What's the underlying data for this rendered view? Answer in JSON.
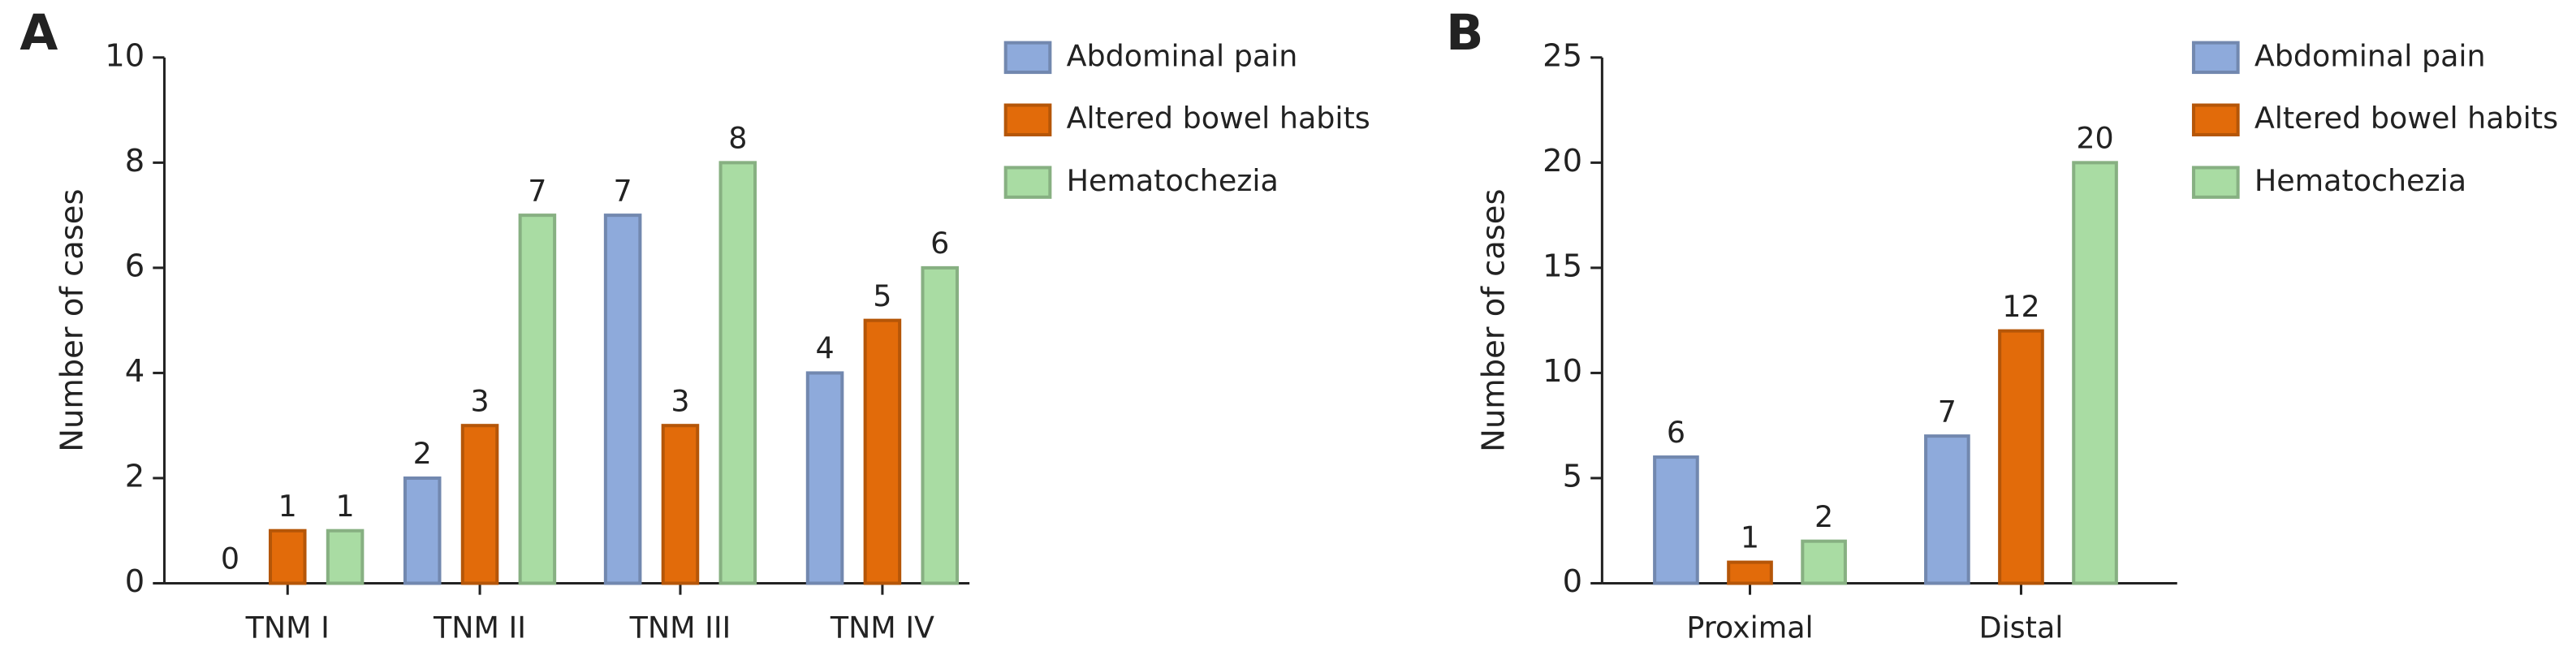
{
  "chart_data": [
    {
      "type": "bar",
      "label": "A",
      "ylabel": "Number of cases",
      "categories": [
        "TNM I",
        "TNM II",
        "TNM III",
        "TNM IV"
      ],
      "series": [
        {
          "name": "Abdominal pain",
          "color": "#8eaadb",
          "values": [
            0,
            2,
            7,
            4
          ]
        },
        {
          "name": "Altered bowel habits",
          "color": "#e26b0a",
          "values": [
            1,
            3,
            3,
            5
          ]
        },
        {
          "name": "Hematochezia",
          "color": "#a9dca3",
          "values": [
            1,
            7,
            8,
            6
          ]
        }
      ],
      "ylim": [
        0,
        10
      ],
      "yticks": [
        0,
        2,
        4,
        6,
        8,
        10
      ]
    },
    {
      "type": "bar",
      "label": "B",
      "ylabel": "Number of cases",
      "categories": [
        "Proximal",
        "Distal"
      ],
      "series": [
        {
          "name": "Abdominal pain",
          "color": "#8eaadb",
          "values": [
            6,
            7
          ]
        },
        {
          "name": "Altered bowel habits",
          "color": "#e26b0a",
          "values": [
            1,
            12
          ]
        },
        {
          "name": "Hematochezia",
          "color": "#a9dca3",
          "values": [
            2,
            20
          ]
        }
      ],
      "ylim": [
        0,
        25
      ],
      "yticks": [
        0,
        5,
        10,
        15,
        20,
        25
      ]
    }
  ]
}
